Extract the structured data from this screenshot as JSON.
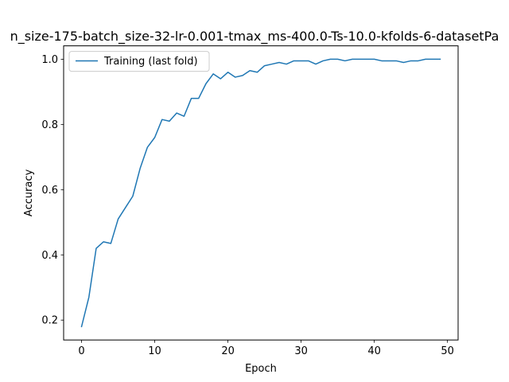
{
  "chart_data": {
    "type": "line",
    "title": "n_size-175-batch_size-32-lr-0.001-tmax_ms-400.0-Ts-10.0-kfolds-6-datasetPa",
    "xlabel": "Epoch",
    "ylabel": "Accuracy",
    "xlim": [
      -2.45,
      51.45
    ],
    "ylim": [
      0.139,
      1.041
    ],
    "xticks": [
      0,
      10,
      20,
      30,
      40,
      50
    ],
    "yticks": [
      0.2,
      0.4,
      0.6,
      0.8,
      1.0
    ],
    "xtick_labels": [
      "0",
      "10",
      "20",
      "30",
      "40",
      "50"
    ],
    "ytick_labels": [
      "0.2",
      "0.4",
      "0.6",
      "0.8",
      "1.0"
    ],
    "grid": false,
    "legend_position": "top-left",
    "series": [
      {
        "name": "Training (last fold)",
        "color": "#1f77b4",
        "x": [
          0,
          1,
          2,
          3,
          4,
          5,
          6,
          7,
          8,
          9,
          10,
          11,
          12,
          13,
          14,
          15,
          16,
          17,
          18,
          19,
          20,
          21,
          22,
          23,
          24,
          25,
          26,
          27,
          28,
          29,
          30,
          31,
          32,
          33,
          34,
          35,
          36,
          37,
          38,
          39,
          40,
          41,
          42,
          43,
          44,
          45,
          46,
          47,
          48,
          49
        ],
        "y": [
          0.18,
          0.27,
          0.42,
          0.44,
          0.435,
          0.51,
          0.545,
          0.58,
          0.665,
          0.73,
          0.76,
          0.815,
          0.81,
          0.835,
          0.825,
          0.88,
          0.88,
          0.925,
          0.955,
          0.94,
          0.96,
          0.945,
          0.95,
          0.965,
          0.96,
          0.98,
          0.985,
          0.99,
          0.985,
          0.995,
          0.995,
          0.995,
          0.985,
          0.995,
          1.0,
          1.0,
          0.995,
          1.0,
          1.0,
          1.0,
          1.0,
          0.995,
          0.995,
          0.995,
          0.99,
          0.995,
          0.995,
          1.0,
          1.0,
          1.0
        ]
      }
    ]
  }
}
